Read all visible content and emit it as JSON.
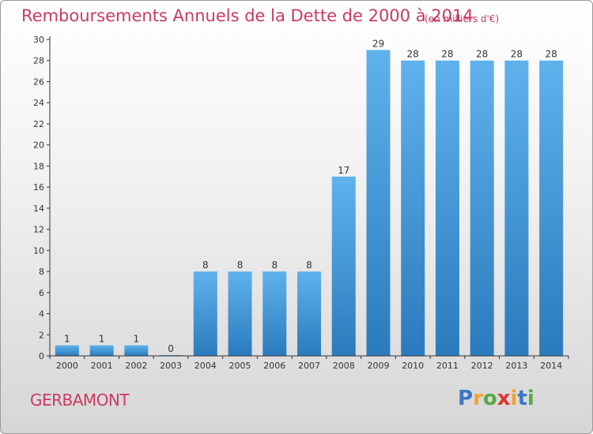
{
  "header": {
    "title": "Remboursements Annuels de la Dette de 2000 à 2014",
    "subtitle": "(en milliers d'€)"
  },
  "footer": {
    "commune": "GERBAMONT",
    "brand": [
      "P",
      "r",
      "o",
      "x",
      "i",
      "t",
      "i"
    ],
    "brand_colors": [
      "#3b78c6",
      "#f0a23a",
      "#56a843",
      "#e2342e",
      "#f0a23a",
      "#3b78c6",
      "#56a843"
    ]
  },
  "chart_data": {
    "type": "bar",
    "title": "Remboursements Annuels de la Dette de 2000 à 2014",
    "subtitle": "(en milliers d'€)",
    "categories": [
      "2000",
      "2001",
      "2002",
      "2003",
      "2004",
      "2005",
      "2006",
      "2007",
      "2008",
      "2009",
      "2010",
      "2011",
      "2012",
      "2013",
      "2014"
    ],
    "values": [
      1,
      1,
      1,
      0,
      8,
      8,
      8,
      8,
      17,
      29,
      28,
      28,
      28,
      28,
      28
    ],
    "data_labels": [
      "1",
      "1",
      "1",
      "0",
      "8",
      "8",
      "8",
      "8",
      "17",
      "29",
      "28",
      "28",
      "28",
      "28",
      "28"
    ],
    "yticks": [
      "0",
      "2",
      "4",
      "6",
      "8",
      "10",
      "12",
      "14",
      "16",
      "18",
      "20",
      "22",
      "24",
      "26",
      "28",
      "30"
    ],
    "ylim": [
      0,
      30
    ],
    "grid": false,
    "legend": "none",
    "colors": {
      "bar_top": "#5fb2ec",
      "bar_bottom": "#2a7bbd",
      "axis": "#333333",
      "text": "#333333"
    }
  }
}
